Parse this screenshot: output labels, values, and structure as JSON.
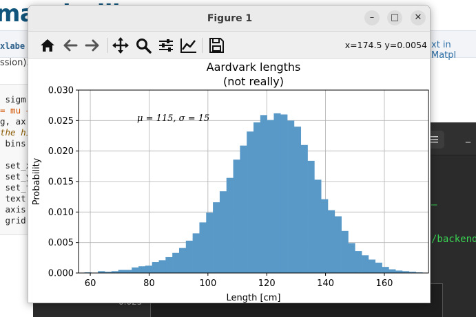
{
  "background": {
    "logo_text": "matplotlib",
    "xlabel_snippet": "xlabe",
    "session_snippet": "ssion).",
    "right_link": "xt in Matpl",
    "code_lines": [
      {
        "text": " sigm",
        "cls": ""
      },
      {
        "text": "= mu +",
        "cls": "op"
      },
      {
        "text": "g, ax",
        "cls": ""
      },
      {
        "text": "the hi",
        "cls": "com"
      },
      {
        "text": " bins,",
        "cls": ""
      },
      {
        "text": "",
        "cls": ""
      },
      {
        "text": " set_x",
        "cls": ""
      },
      {
        "text": " set_y",
        "cls": ""
      },
      {
        "text": " set_t",
        "cls": ""
      },
      {
        "text": " text(",
        "cls": ""
      },
      {
        "text": " axis(",
        "cls": ""
      },
      {
        "text": " grid(",
        "cls": ""
      }
    ],
    "terminal": {
      "menu_icon": "hamburger-icon",
      "minimize": "_",
      "green_dash": "–",
      "path_text": "/backend",
      "tick_label": "0.025"
    }
  },
  "window": {
    "title": "Figure 1",
    "minimize_glyph": "–",
    "maximize_glyph": "□",
    "close_glyph": "✕",
    "coords": "x=174.5 y=0.0054",
    "toolbar": [
      "home-icon",
      "back-arrow-icon",
      "forward-arrow-icon",
      "pan-move-icon",
      "zoom-magnifier-icon",
      "configure-subplots-icon",
      "edit-axis-icon",
      "save-icon"
    ]
  },
  "chart_data": {
    "type": "bar",
    "title": "Aardvark lengths",
    "subtitle": "(not really)",
    "xlabel": "Length [cm]",
    "ylabel": "Probability",
    "annotation": "μ = 115,  σ = 15",
    "xlim": [
      56,
      175
    ],
    "ylim": [
      0,
      0.03
    ],
    "xticks": [
      "60",
      "80",
      "100",
      "120",
      "140",
      "160"
    ],
    "yticks": [
      "0.000",
      "0.005",
      "0.010",
      "0.015",
      "0.020",
      "0.025",
      "0.030"
    ],
    "grid": true,
    "bar_color": "#5899c8",
    "bins": [
      58.0,
      60.3,
      62.6,
      64.9,
      67.2,
      69.5,
      71.8,
      74.1,
      76.4,
      78.7,
      81.0,
      83.3,
      85.6,
      87.9,
      90.2,
      92.5,
      94.8,
      97.1,
      99.4,
      101.7,
      104.0,
      106.3,
      108.6,
      110.9,
      113.2,
      115.5,
      117.8,
      120.1,
      122.4,
      124.7,
      127.0,
      129.3,
      131.6,
      133.9,
      136.2,
      138.5,
      140.8,
      143.1,
      145.4,
      147.7,
      150.0,
      152.3,
      154.6,
      156.9,
      159.2,
      161.5,
      163.8,
      166.1,
      168.4,
      170.7
    ],
    "values": [
      0.0001,
      0.0,
      0.0003,
      0.0002,
      0.0003,
      0.0005,
      0.0005,
      0.0009,
      0.0011,
      0.0012,
      0.0018,
      0.0021,
      0.0026,
      0.0033,
      0.0041,
      0.0053,
      0.0065,
      0.0083,
      0.0099,
      0.0116,
      0.0134,
      0.0156,
      0.0186,
      0.0209,
      0.0232,
      0.0247,
      0.0259,
      0.0251,
      0.0262,
      0.026,
      0.025,
      0.024,
      0.021,
      0.0184,
      0.0153,
      0.0121,
      0.0103,
      0.0093,
      0.0069,
      0.0049,
      0.0036,
      0.0029,
      0.0022,
      0.0017,
      0.001,
      0.0006,
      0.0004,
      0.0003,
      0.0002,
      0.0001
    ]
  }
}
